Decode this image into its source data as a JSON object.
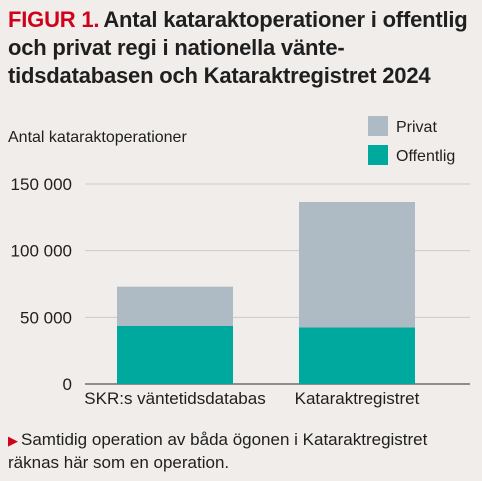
{
  "figure_label": "FIGUR 1.",
  "title": "Antal kataraktoperationer i offentlig och privat regi i nationella vänte­tidsdatabasen och Kataraktregistret 2024",
  "note": "Samtidig operation av båda ögonen i Katarakt­registret räknas här som en operation.",
  "colors": {
    "privat": "#aebbc4",
    "offentlig": "#00a99d",
    "fig_label": "#d0021b",
    "background": "#f0edea"
  },
  "chart_data": {
    "type": "bar",
    "stacked": true,
    "categories": [
      "SKR:s väntetidsdatabas",
      "Kataraktregistret"
    ],
    "series": [
      {
        "name": "Offentlig",
        "values": [
          43500,
          42500
        ]
      },
      {
        "name": "Privat",
        "values": [
          29500,
          94000
        ]
      }
    ],
    "ylabel": "Antal kataraktoperationer",
    "ylim": [
      0,
      150000
    ],
    "yticks": [
      0,
      50000,
      100000,
      150000
    ],
    "ytick_labels": [
      "0",
      "50 000",
      "100 000",
      "150 000"
    ],
    "grid": true,
    "legend_position": "top-right",
    "legend": [
      "Privat",
      "Offentlig"
    ]
  }
}
